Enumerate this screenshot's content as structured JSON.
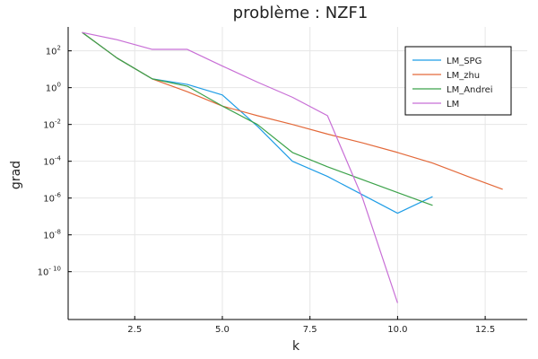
{
  "chart_data": {
    "type": "line",
    "title": "problème : NZF1",
    "xlabel": "k",
    "ylabel": "grad",
    "xlim": [
      0.6,
      13.7
    ],
    "ylim": [
      -12.6,
      3.3
    ],
    "y_scale": "log10",
    "grid": true,
    "legend_position": "top-right",
    "xticks": [
      2.5,
      5.0,
      7.5,
      10.0,
      12.5
    ],
    "xtick_labels": [
      "2.5",
      "5.0",
      "7.5",
      "10.0",
      "12.5"
    ],
    "yticks": [
      2,
      0,
      -2,
      -4,
      -6,
      -8,
      -10
    ],
    "ytick_base": "10",
    "ytick_exponents": [
      "2",
      "0",
      "-2",
      "-4",
      "-6",
      "-8",
      "- 10"
    ],
    "series": [
      {
        "name": "LM_SPG",
        "color": "#1f9de6",
        "x": [
          1,
          2,
          3,
          4,
          5,
          6,
          7,
          8,
          9,
          10,
          11
        ],
        "y": [
          1000,
          40,
          3,
          1.5,
          0.4,
          0.008,
          0.0001,
          1.5e-05,
          1.5e-06,
          1.5e-07,
          1.2e-06
        ]
      },
      {
        "name": "LM_zhu",
        "color": "#e3693a",
        "x": [
          1,
          2,
          3,
          4,
          5,
          6,
          7,
          8,
          9,
          10,
          11,
          12,
          13
        ],
        "y": [
          1000,
          40,
          3,
          0.6,
          0.1,
          0.03,
          0.01,
          0.003,
          0.001,
          0.0003,
          8e-05,
          1.5e-05,
          3e-06
        ]
      },
      {
        "name": "LM_Andrei",
        "color": "#3ca24a",
        "x": [
          1,
          2,
          3,
          4,
          5,
          6,
          7,
          8,
          9,
          10,
          11
        ],
        "y": [
          1000,
          40,
          3,
          1.2,
          0.1,
          0.01,
          0.0003,
          5e-05,
          1e-05,
          2e-06,
          4e-07
        ]
      },
      {
        "name": "LM",
        "color": "#c86fd6",
        "x": [
          1,
          2,
          3,
          4,
          5,
          6,
          7,
          8,
          9,
          10
        ],
        "y": [
          1000,
          400,
          120,
          120,
          15,
          2,
          0.3,
          0.03,
          1e-06,
          2e-12
        ]
      }
    ]
  }
}
